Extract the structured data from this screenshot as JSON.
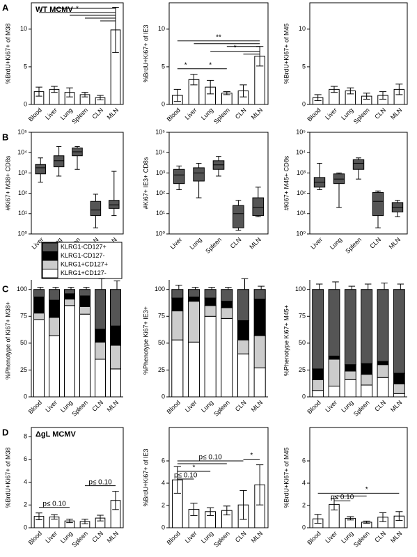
{
  "chart_data": [
    {
      "type": "bar",
      "panel": "A",
      "annotation": "WT MCMV",
      "frame": true,
      "ylabel": "%BrdU+Ki67+ of M38",
      "categories": [
        "Blood",
        "Liver",
        "Lung",
        "Spleen",
        "CLN",
        "MLN"
      ],
      "values": [
        1.7,
        2.0,
        1.6,
        1.3,
        0.9,
        9.9
      ],
      "errors": [
        0.6,
        0.4,
        0.6,
        0.3,
        0.3,
        3.0
      ],
      "color": "#ffffff",
      "ylim": [
        0,
        13.5
      ],
      "yticks": [
        0,
        5,
        10
      ],
      "comparisons": [
        {
          "from": "Blood",
          "to": "MLN",
          "label": "*"
        },
        {
          "from": "Liver",
          "to": "MLN"
        },
        {
          "from": "Lung",
          "to": "MLN"
        },
        {
          "from": "Spleen",
          "to": "MLN"
        },
        {
          "from": "CLN",
          "to": "MLN"
        }
      ]
    },
    {
      "type": "bar",
      "frame": true,
      "ylabel": "%BrdU+Ki67+ of IE3",
      "categories": [
        "Blood",
        "Liver",
        "Lung",
        "Spleen",
        "CLN",
        "MLN"
      ],
      "values": [
        1.2,
        3.3,
        2.3,
        1.5,
        1.8,
        6.4
      ],
      "errors": [
        0.8,
        0.7,
        0.9,
        0.2,
        0.8,
        1.3
      ],
      "color": "#ffffff",
      "ylim": [
        0,
        13.5
      ],
      "yticks": [
        0,
        5,
        10
      ],
      "comparisons": [
        {
          "from": "Blood",
          "to": "MLN",
          "label": "**"
        },
        {
          "from": "Liver",
          "to": "MLN"
        },
        {
          "from": "Lung",
          "to": "MLN",
          "label": "*"
        },
        {
          "from": "Spleen",
          "to": "MLN"
        },
        {
          "from": "CLN",
          "to": "MLN"
        },
        {
          "from": "Blood",
          "to": "Liver",
          "label": "*"
        },
        {
          "from": "Liver",
          "to": "Spleen",
          "label": "*"
        }
      ]
    },
    {
      "type": "bar",
      "frame": true,
      "ylabel": "%BrdU+Ki67+ of M45",
      "categories": [
        "Blood",
        "Liver",
        "Lung",
        "Spleen",
        "CLN",
        "MLN"
      ],
      "values": [
        0.9,
        2.0,
        1.8,
        1.1,
        1.2,
        2.0
      ],
      "errors": [
        0.4,
        0.4,
        0.4,
        0.4,
        0.5,
        0.7
      ],
      "color": "#ffffff",
      "ylim": [
        0,
        13.5
      ],
      "yticks": [
        0,
        5,
        10
      ]
    },
    {
      "type": "box",
      "panel": "B",
      "frame": true,
      "log_scale": true,
      "ylabel": "#Ki67+ M38+ CD8s",
      "color": "#555555",
      "categories": [
        "Liver",
        "Lung",
        "Spleen",
        "CLN",
        "MLN"
      ],
      "min": [
        350,
        700,
        1500,
        2,
        8
      ],
      "q1": [
        900,
        2000,
        7000,
        8,
        18
      ],
      "median": [
        1800,
        4000,
        11000,
        15,
        27
      ],
      "q3": [
        2600,
        7000,
        17000,
        40,
        45
      ],
      "max": [
        5500,
        20000,
        20000,
        90,
        1200
      ],
      "ylim": [
        1,
        100000
      ],
      "yticks": [
        {
          "value": 1,
          "label": "10⁰"
        },
        {
          "value": 10,
          "label": "10¹"
        },
        {
          "value": 100,
          "label": "10²"
        },
        {
          "value": 1000,
          "label": "10³"
        },
        {
          "value": 10000,
          "label": "10⁴"
        },
        {
          "value": 100000,
          "label": "10⁵"
        }
      ]
    },
    {
      "type": "box",
      "frame": true,
      "log_scale": true,
      "ylabel": "#Ki67+ IE3+ CD8s",
      "color": "#555555",
      "categories": [
        "Liver",
        "Lung",
        "Spleen",
        "CLN",
        "MLN"
      ],
      "min": [
        150,
        60,
        700,
        1.5,
        7
      ],
      "q1": [
        300,
        400,
        1500,
        2,
        8
      ],
      "median": [
        800,
        1000,
        2500,
        10,
        20
      ],
      "q3": [
        1500,
        1800,
        4000,
        25,
        60
      ],
      "max": [
        2200,
        3000,
        6500,
        45,
        200
      ],
      "ylim": [
        1,
        100000
      ],
      "yticks": [
        {
          "value": 1,
          "label": "10⁰"
        },
        {
          "value": 10,
          "label": "10¹"
        },
        {
          "value": 100,
          "label": "10²"
        },
        {
          "value": 1000,
          "label": "10³"
        },
        {
          "value": 10000,
          "label": "10⁴"
        },
        {
          "value": 100000,
          "label": "10⁵"
        }
      ]
    },
    {
      "type": "box",
      "frame": true,
      "log_scale": true,
      "ylabel": "#Ki67+ M45+ CD8s",
      "color": "#555555",
      "categories": [
        "Liver",
        "Lung",
        "Spleen",
        "CLN",
        "MLN"
      ],
      "min": [
        150,
        20,
        500,
        2,
        7
      ],
      "q1": [
        200,
        300,
        1500,
        8,
        12
      ],
      "median": [
        350,
        500,
        3000,
        40,
        20
      ],
      "q3": [
        600,
        900,
        4500,
        110,
        35
      ],
      "max": [
        3000,
        1000,
        5500,
        130,
        45
      ],
      "ylim": [
        1,
        100000
      ],
      "yticks": [
        {
          "value": 1,
          "label": "10⁰"
        },
        {
          "value": 10,
          "label": "10¹"
        },
        {
          "value": 100,
          "label": "10²"
        },
        {
          "value": 1000,
          "label": "10³"
        },
        {
          "value": 10000,
          "label": "10⁴"
        },
        {
          "value": 100000,
          "label": "10⁵"
        }
      ]
    },
    {
      "type": "stacked_bar",
      "panel": "C",
      "legend": true,
      "ylabel": "%Phenotype of Ki67+ M38+",
      "categories": [
        "Blood",
        "Liver",
        "Lung",
        "Spleen",
        "CLN",
        "MLN"
      ],
      "ylim": [
        0,
        105
      ],
      "yticks": [
        0,
        25,
        50,
        75,
        100
      ],
      "series": [
        {
          "name": "KLRG1+CD127-",
          "color": "#ffffff",
          "values": [
            72,
            57,
            85,
            77,
            35,
            26
          ],
          "errors": [
            4,
            3,
            3,
            3,
            6,
            4
          ]
        },
        {
          "name": "KLRG1+CD127+",
          "color": "#cccccc",
          "values": [
            6,
            17,
            6,
            7,
            16,
            22
          ],
          "errors": [
            3,
            3,
            2,
            2,
            6,
            6
          ]
        },
        {
          "name": "KLRG1-CD127-",
          "color": "#000000",
          "values": [
            15,
            16,
            5,
            10,
            12,
            18
          ],
          "errors": [
            2,
            2,
            2,
            2,
            4,
            4
          ]
        },
        {
          "name": "KLRG1-CD127+",
          "color": "#555555",
          "values": [
            7,
            10,
            4,
            6,
            37,
            34
          ],
          "errors": [
            2,
            2,
            2,
            2,
            10,
            8
          ]
        }
      ]
    },
    {
      "type": "stacked_bar",
      "ylabel": "%Phenotype Ki67+ IE3+",
      "categories": [
        "Blood",
        "Liver",
        "Lung",
        "Spleen",
        "CLN",
        "MLN"
      ],
      "ylim": [
        0,
        105
      ],
      "yticks": [
        0,
        25,
        50,
        75,
        100
      ],
      "series": [
        {
          "color": "#ffffff",
          "values": [
            53,
            51,
            75,
            73,
            40,
            27
          ],
          "errors": [
            12,
            5,
            4,
            3,
            8,
            6
          ]
        },
        {
          "color": "#cccccc",
          "values": [
            27,
            38,
            10,
            10,
            13,
            30
          ],
          "errors": [
            6,
            3,
            2,
            2,
            5,
            8
          ]
        },
        {
          "color": "#000000",
          "values": [
            12,
            4,
            7,
            6,
            18,
            34
          ],
          "errors": [
            4,
            2,
            2,
            2,
            6,
            6
          ]
        },
        {
          "color": "#555555",
          "values": [
            8,
            7,
            8,
            11,
            29,
            9
          ],
          "errors": [
            4,
            2,
            2,
            2,
            10,
            3
          ]
        }
      ]
    },
    {
      "type": "stacked_bar",
      "ylabel": "%Phenotype Ki67+ M45+",
      "categories": [
        "Blood",
        "Liver",
        "Lung",
        "Spleen",
        "CLN",
        "MLN"
      ],
      "ylim": [
        0,
        105
      ],
      "yticks": [
        0,
        25,
        50,
        75,
        100
      ],
      "series": [
        {
          "color": "#ffffff",
          "values": [
            6,
            10,
            16,
            11,
            18,
            3
          ],
          "errors": [
            2,
            2,
            3,
            3,
            5,
            1
          ]
        },
        {
          "color": "#cccccc",
          "values": [
            10,
            25,
            8,
            10,
            12,
            9
          ],
          "errors": [
            3,
            3,
            2,
            3,
            3,
            2
          ]
        },
        {
          "color": "#000000",
          "values": [
            10,
            3,
            6,
            10,
            3,
            10
          ],
          "errors": [
            5,
            2,
            2,
            3,
            2,
            4
          ]
        },
        {
          "color": "#555555",
          "values": [
            74,
            62,
            70,
            69,
            67,
            78
          ],
          "errors": [
            5,
            7,
            3,
            5,
            6,
            5
          ]
        }
      ]
    },
    {
      "type": "bar",
      "panel": "D",
      "annotation": "ΔgL MCMV",
      "frame": true,
      "ylabel": "%BrdU+Ki67+ of M38",
      "categories": [
        "Blood",
        "Liver",
        "Lung",
        "Spleen",
        "CLN",
        "MLN"
      ],
      "values": [
        1.0,
        0.95,
        0.6,
        0.55,
        0.85,
        2.4
      ],
      "errors": [
        0.3,
        0.2,
        0.15,
        0.2,
        0.25,
        0.8
      ],
      "color": "#ffffff",
      "ylim": [
        0,
        8.8
      ],
      "yticks": [
        0,
        2,
        4,
        6,
        8
      ],
      "comparisons": [
        {
          "from": "Blood",
          "to": "Lung",
          "label": "p≤ 0.10"
        },
        {
          "from": "Spleen",
          "to": "MLN",
          "label": "p≤ 0.10"
        }
      ]
    },
    {
      "type": "bar",
      "frame": true,
      "ylabel": "%BrdU+Ki67+ of IE3",
      "categories": [
        "Blood",
        "Liver",
        "Lung",
        "Spleen",
        "CLN",
        "MLN"
      ],
      "values": [
        4.3,
        1.65,
        1.45,
        1.55,
        2.05,
        3.85
      ],
      "errors": [
        1.2,
        0.55,
        0.35,
        0.4,
        1.3,
        1.8
      ],
      "color": "#ffffff",
      "ylim": [
        0,
        9
      ],
      "yticks": [
        0,
        2,
        4,
        6
      ],
      "comparisons": [
        {
          "from": "Blood",
          "to": "CLN",
          "label": "p≤ 0.10"
        },
        {
          "from": "Blood",
          "to": "Spleen"
        },
        {
          "from": "Blood",
          "to": "Lung",
          "label": "*"
        },
        {
          "from": "Blood",
          "to": "Liver",
          "label": "p≤ 0.10"
        },
        {
          "from": "CLN",
          "to": "MLN",
          "label": "*"
        }
      ]
    },
    {
      "type": "bar",
      "frame": true,
      "ylabel": "%BrdU+Ki67+ of M45",
      "categories": [
        "Blood",
        "Liver",
        "Lung",
        "Spleen",
        "CLN",
        "MLN"
      ],
      "values": [
        0.8,
        2.1,
        0.85,
        0.5,
        0.95,
        1.05
      ],
      "errors": [
        0.4,
        0.5,
        0.15,
        0.1,
        0.4,
        0.4
      ],
      "color": "#ffffff",
      "ylim": [
        0,
        9
      ],
      "yticks": [
        0,
        2,
        4,
        6
      ],
      "comparisons": [
        {
          "from": "Liver",
          "to": "MLN",
          "label": "*"
        },
        {
          "from": "Liver",
          "to": "Lung",
          "label": "p≤ 0.10"
        },
        {
          "from": "Liver",
          "to": "Spleen"
        },
        {
          "from": "Blood",
          "to": "Liver"
        }
      ]
    }
  ]
}
